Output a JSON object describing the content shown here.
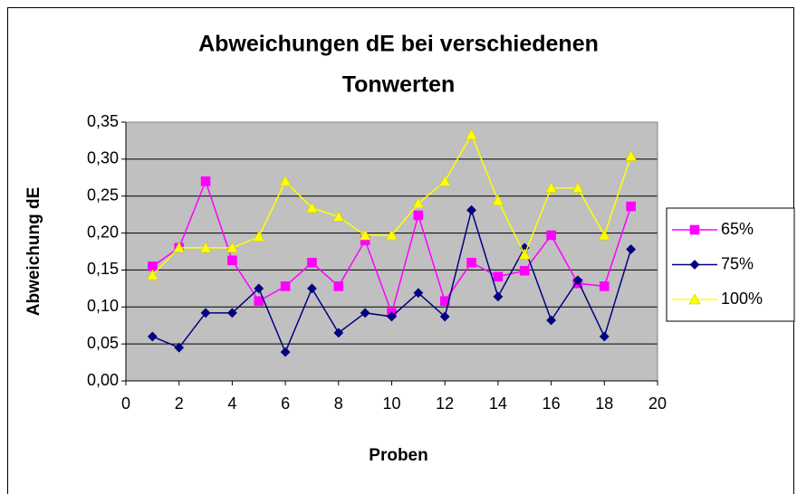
{
  "chart_data": {
    "type": "line",
    "title": [
      "Abweichungen dE bei verschiedenen",
      "Tonwerten"
    ],
    "x_label": "Proben",
    "y_label": "Abweichung dE",
    "x": [
      1,
      2,
      3,
      4,
      5,
      6,
      7,
      8,
      9,
      10,
      11,
      12,
      13,
      14,
      15,
      16,
      17,
      18,
      19
    ],
    "series": [
      {
        "name": "65%",
        "color": "#ff00ff",
        "marker": "square",
        "values": [
          0.155,
          0.18,
          0.27,
          0.163,
          0.108,
          0.128,
          0.16,
          0.128,
          0.19,
          0.092,
          0.224,
          0.108,
          0.16,
          0.141,
          0.149,
          0.197,
          0.132,
          0.128,
          0.236
        ]
      },
      {
        "name": "75%",
        "color": "#000080",
        "marker": "diamond",
        "values": [
          0.06,
          0.045,
          0.092,
          0.092,
          0.125,
          0.039,
          0.125,
          0.065,
          0.092,
          0.087,
          0.119,
          0.087,
          0.231,
          0.114,
          0.18,
          0.082,
          0.136,
          0.06,
          0.178
        ]
      },
      {
        "name": "100%",
        "color": "#ffff00",
        "marker": "triangle",
        "values": [
          0.143,
          0.18,
          0.18,
          0.18,
          0.195,
          0.27,
          0.234,
          0.222,
          0.197,
          0.197,
          0.24,
          0.27,
          0.333,
          0.244,
          0.171,
          0.261,
          0.261,
          0.197,
          0.304
        ]
      }
    ],
    "xlim": [
      0,
      20
    ],
    "xticks": [
      0,
      2,
      4,
      6,
      8,
      10,
      12,
      14,
      16,
      18,
      20
    ],
    "ylim": [
      0,
      0.35
    ],
    "yticks": [
      {
        "value": 0,
        "label": "0,00"
      },
      {
        "value": 0.05,
        "label": "0,05"
      },
      {
        "value": 0.1,
        "label": "0,10"
      },
      {
        "value": 0.15,
        "label": "0,15"
      },
      {
        "value": 0.2,
        "label": "0,20"
      },
      {
        "value": 0.25,
        "label": "0,25"
      },
      {
        "value": 0.3,
        "label": "0,30"
      },
      {
        "value": 0.35,
        "label": "0,35"
      }
    ],
    "grid": true,
    "legend": "right",
    "plot_background": "#c0c0c0"
  }
}
